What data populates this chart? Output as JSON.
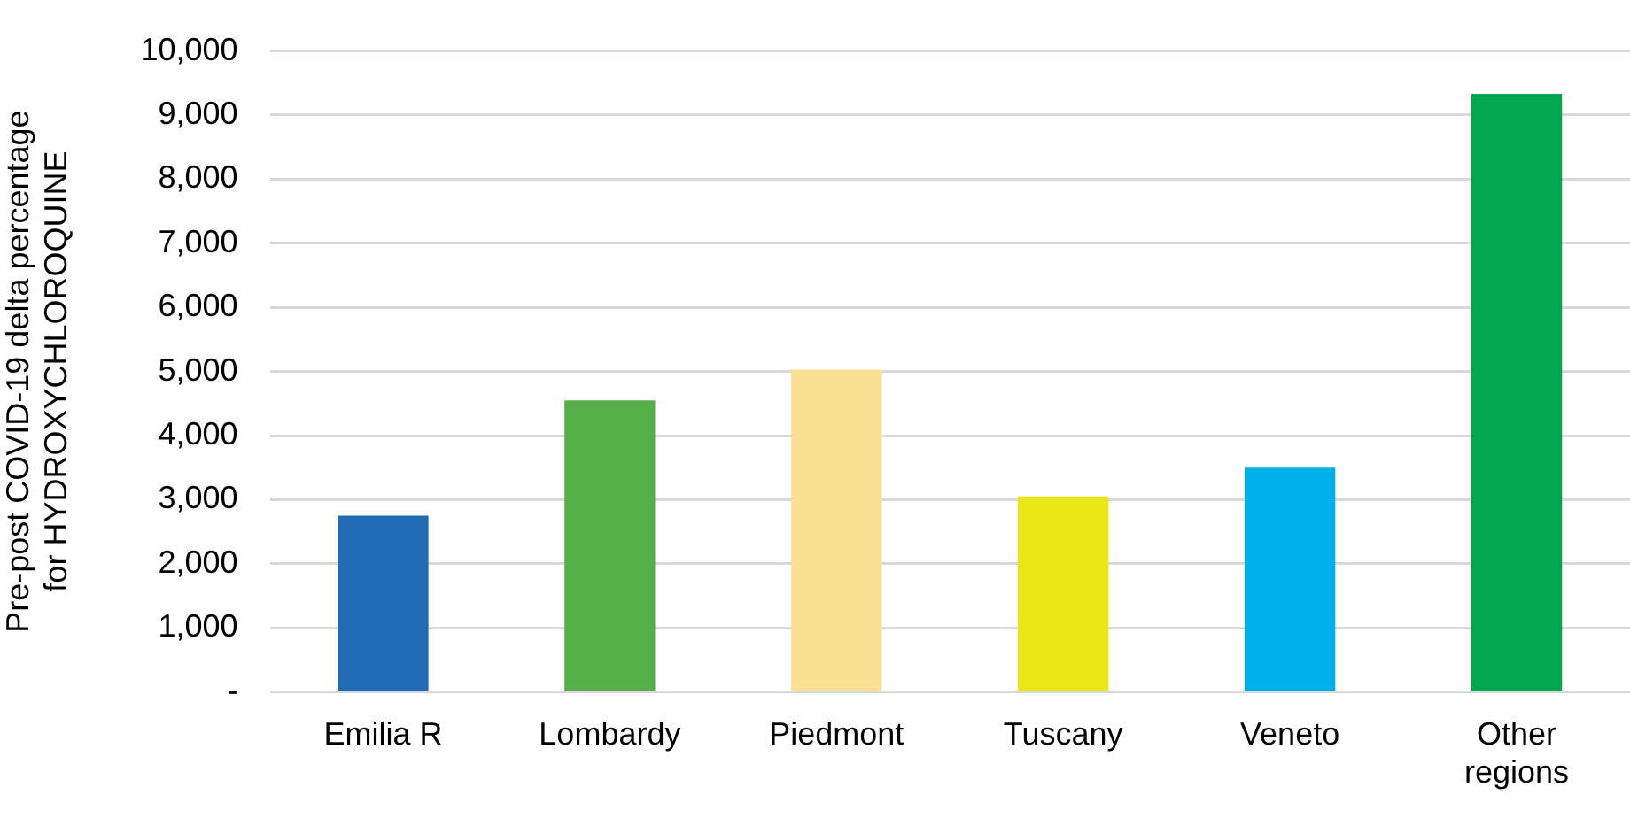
{
  "chart_data": {
    "type": "bar",
    "ylabel": "Pre-post COVID-19 delta percentage\nfor HYDROXYCHLOROQUINE",
    "categories": [
      "Emilia R",
      "Lombardy",
      "Piedmont",
      "Tuscany",
      "Veneto",
      "Other regions"
    ],
    "values": [
      2750,
      4550,
      5030,
      3050,
      3500,
      9330
    ],
    "colors": [
      "#1f6bb5",
      "#55b04a",
      "#fbe093",
      "#ebe716",
      "#00b0e8",
      "#00a94f"
    ],
    "ylim": [
      0,
      10000
    ],
    "yticks": [
      {
        "value": 0,
        "label": "-"
      },
      {
        "value": 1000,
        "label": "1,000"
      },
      {
        "value": 2000,
        "label": "2,000"
      },
      {
        "value": 3000,
        "label": "3,000"
      },
      {
        "value": 4000,
        "label": "4,000"
      },
      {
        "value": 5000,
        "label": "5,000"
      },
      {
        "value": 6000,
        "label": "6,000"
      },
      {
        "value": 7000,
        "label": "7,000"
      },
      {
        "value": 8000,
        "label": "8,000"
      },
      {
        "value": 9000,
        "label": "9,000"
      },
      {
        "value": 10000,
        "label": "10,000"
      }
    ],
    "grid": "y",
    "legend": false
  }
}
